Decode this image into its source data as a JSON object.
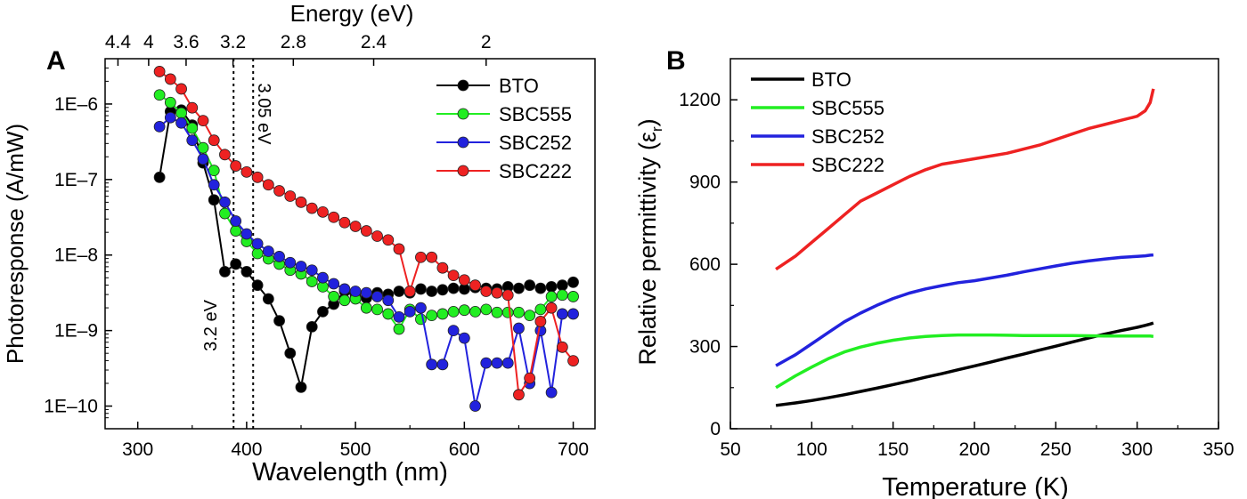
{
  "panels": {
    "a": {
      "label": "A"
    },
    "b": {
      "label": "B"
    }
  },
  "chart_data": [
    {
      "type": "line",
      "panel": "A",
      "xlabel": "Wavelength (nm)",
      "ylabel": "Photoresponse (A/mW)",
      "top_axis_label": "Energy (eV)",
      "top_ticks": [
        {
          "label": "4.4",
          "wavelength": 281.8
        },
        {
          "label": "4",
          "wavelength": 310.0
        },
        {
          "label": "3.6",
          "wavelength": 344.4
        },
        {
          "label": "3.2",
          "wavelength": 387.5
        },
        {
          "label": "2.8",
          "wavelength": 442.9
        },
        {
          "label": "2.4",
          "wavelength": 516.7
        },
        {
          "label": "2",
          "wavelength": 620.0
        }
      ],
      "xlim": [
        270,
        720
      ],
      "xticks": [
        300,
        400,
        500,
        600,
        700
      ],
      "y_scale": "log",
      "ylim_log10": [
        -10.3,
        -5.4
      ],
      "yticks": [
        {
          "label": "1E–10",
          "log10": -10
        },
        {
          "label": "1E–9",
          "log10": -9
        },
        {
          "label": "1E–8",
          "log10": -8
        },
        {
          "label": "1E–7",
          "log10": -7
        },
        {
          "label": "1E–6",
          "log10": -6
        }
      ],
      "legend_position": "top-right",
      "annotations": [
        {
          "text": "3.2 eV",
          "x": 388
        },
        {
          "text": "3.05 eV",
          "x": 406
        }
      ],
      "x": [
        320,
        330,
        340,
        350,
        360,
        370,
        380,
        390,
        400,
        410,
        420,
        430,
        440,
        450,
        460,
        470,
        480,
        490,
        500,
        510,
        520,
        530,
        540,
        550,
        560,
        570,
        580,
        590,
        600,
        610,
        620,
        630,
        640,
        650,
        660,
        670,
        680,
        690,
        700
      ],
      "series": [
        {
          "name": "BTO",
          "color": "#000000",
          "y_log10": [
            -6.97,
            -6.1,
            -6.08,
            -6.28,
            -6.78,
            -7.27,
            -8.22,
            -8.12,
            -8.22,
            -8.4,
            -8.58,
            -8.87,
            -9.3,
            -9.75,
            -8.95,
            -8.75,
            -8.65,
            -8.48,
            -8.55,
            -8.57,
            -8.5,
            -8.52,
            -8.48,
            -8.5,
            -8.45,
            -8.48,
            -8.46,
            -8.44,
            -8.45,
            -8.43,
            -8.44,
            -8.45,
            -8.42,
            -8.44,
            -8.4,
            -8.44,
            -8.42,
            -8.4,
            -8.36
          ]
        },
        {
          "name": "SBC555",
          "color": "#22ee22",
          "y_log10": [
            -5.88,
            -5.98,
            -6.12,
            -6.32,
            -6.58,
            -6.88,
            -7.45,
            -7.68,
            -7.82,
            -7.98,
            -8.05,
            -8.12,
            -8.2,
            -8.25,
            -8.35,
            -8.42,
            -8.55,
            -8.6,
            -8.58,
            -8.7,
            -8.72,
            -8.78,
            -8.98,
            -8.72,
            -8.85,
            -8.8,
            -8.78,
            -8.75,
            -8.73,
            -8.75,
            -8.72,
            -8.76,
            -8.76,
            -8.76,
            -8.8,
            -8.72,
            -8.55,
            -8.53,
            -8.55
          ]
        },
        {
          "name": "SBC252",
          "color": "#2222dd",
          "y_log10": [
            -6.3,
            -6.18,
            -6.25,
            -6.48,
            -6.73,
            -7.07,
            -7.3,
            -7.55,
            -7.72,
            -7.85,
            -7.95,
            -8.02,
            -8.1,
            -8.15,
            -8.2,
            -8.3,
            -8.38,
            -8.45,
            -8.48,
            -8.5,
            -8.55,
            -8.6,
            -8.82,
            -8.75,
            -8.7,
            -9.45,
            -9.45,
            -9.0,
            -9.1,
            -10.0,
            -9.43,
            -9.43,
            -9.43,
            -8.97,
            -9.7,
            -9.0,
            -9.82,
            -8.78,
            -8.78
          ]
        },
        {
          "name": "SBC222",
          "color": "#ee2222",
          "y_log10": [
            -5.57,
            -5.67,
            -5.8,
            -6.05,
            -6.22,
            -6.48,
            -6.67,
            -6.82,
            -6.9,
            -6.97,
            -7.07,
            -7.15,
            -7.22,
            -7.3,
            -7.38,
            -7.43,
            -7.5,
            -7.57,
            -7.62,
            -7.68,
            -7.75,
            -7.8,
            -7.92,
            -8.48,
            -8.03,
            -8.03,
            -8.17,
            -8.27,
            -8.33,
            -8.4,
            -8.48,
            -8.5,
            -8.53,
            -9.85,
            -9.63,
            -8.88,
            -8.7,
            -9.22,
            -9.4
          ]
        }
      ]
    },
    {
      "type": "line",
      "panel": "B",
      "xlabel": "Temperature (K)",
      "ylabel": "Relative permittivity (ε",
      "ylabel_sub": "r",
      "ylabel_close": ")",
      "xlim": [
        50,
        350
      ],
      "ylim": [
        0,
        1350
      ],
      "xticks": [
        50,
        100,
        150,
        200,
        250,
        300,
        350
      ],
      "yticks": [
        0,
        300,
        600,
        900,
        1200
      ],
      "legend_position": "top-left",
      "x": [
        78,
        90,
        100,
        110,
        120,
        130,
        140,
        150,
        160,
        170,
        180,
        190,
        200,
        210,
        220,
        230,
        240,
        250,
        260,
        270,
        280,
        290,
        300,
        305,
        308,
        310
      ],
      "series": [
        {
          "name": "BTO",
          "color": "#000000",
          "values": [
            85,
            94,
            103,
            113,
            124,
            136,
            148,
            161,
            174,
            188,
            201,
            215,
            229,
            243,
            258,
            272,
            287,
            301,
            316,
            331,
            345,
            358,
            370,
            377,
            382,
            386
          ]
        },
        {
          "name": "SBC555",
          "color": "#22ee22",
          "values": [
            150,
            193,
            225,
            255,
            280,
            298,
            312,
            323,
            331,
            337,
            340,
            342,
            342,
            342,
            341,
            340,
            340,
            340,
            340,
            339,
            338,
            338,
            338,
            338,
            338,
            337
          ]
        },
        {
          "name": "SBC252",
          "color": "#2222dd",
          "values": [
            230,
            270,
            310,
            350,
            390,
            422,
            450,
            475,
            495,
            510,
            522,
            533,
            540,
            550,
            560,
            572,
            583,
            594,
            604,
            612,
            619,
            625,
            629,
            631,
            633,
            634
          ]
        },
        {
          "name": "SBC222",
          "color": "#ee2222",
          "values": [
            582,
            630,
            680,
            730,
            780,
            830,
            860,
            890,
            920,
            945,
            965,
            975,
            985,
            995,
            1005,
            1020,
            1035,
            1055,
            1075,
            1095,
            1110,
            1125,
            1140,
            1160,
            1190,
            1240
          ]
        }
      ]
    }
  ]
}
